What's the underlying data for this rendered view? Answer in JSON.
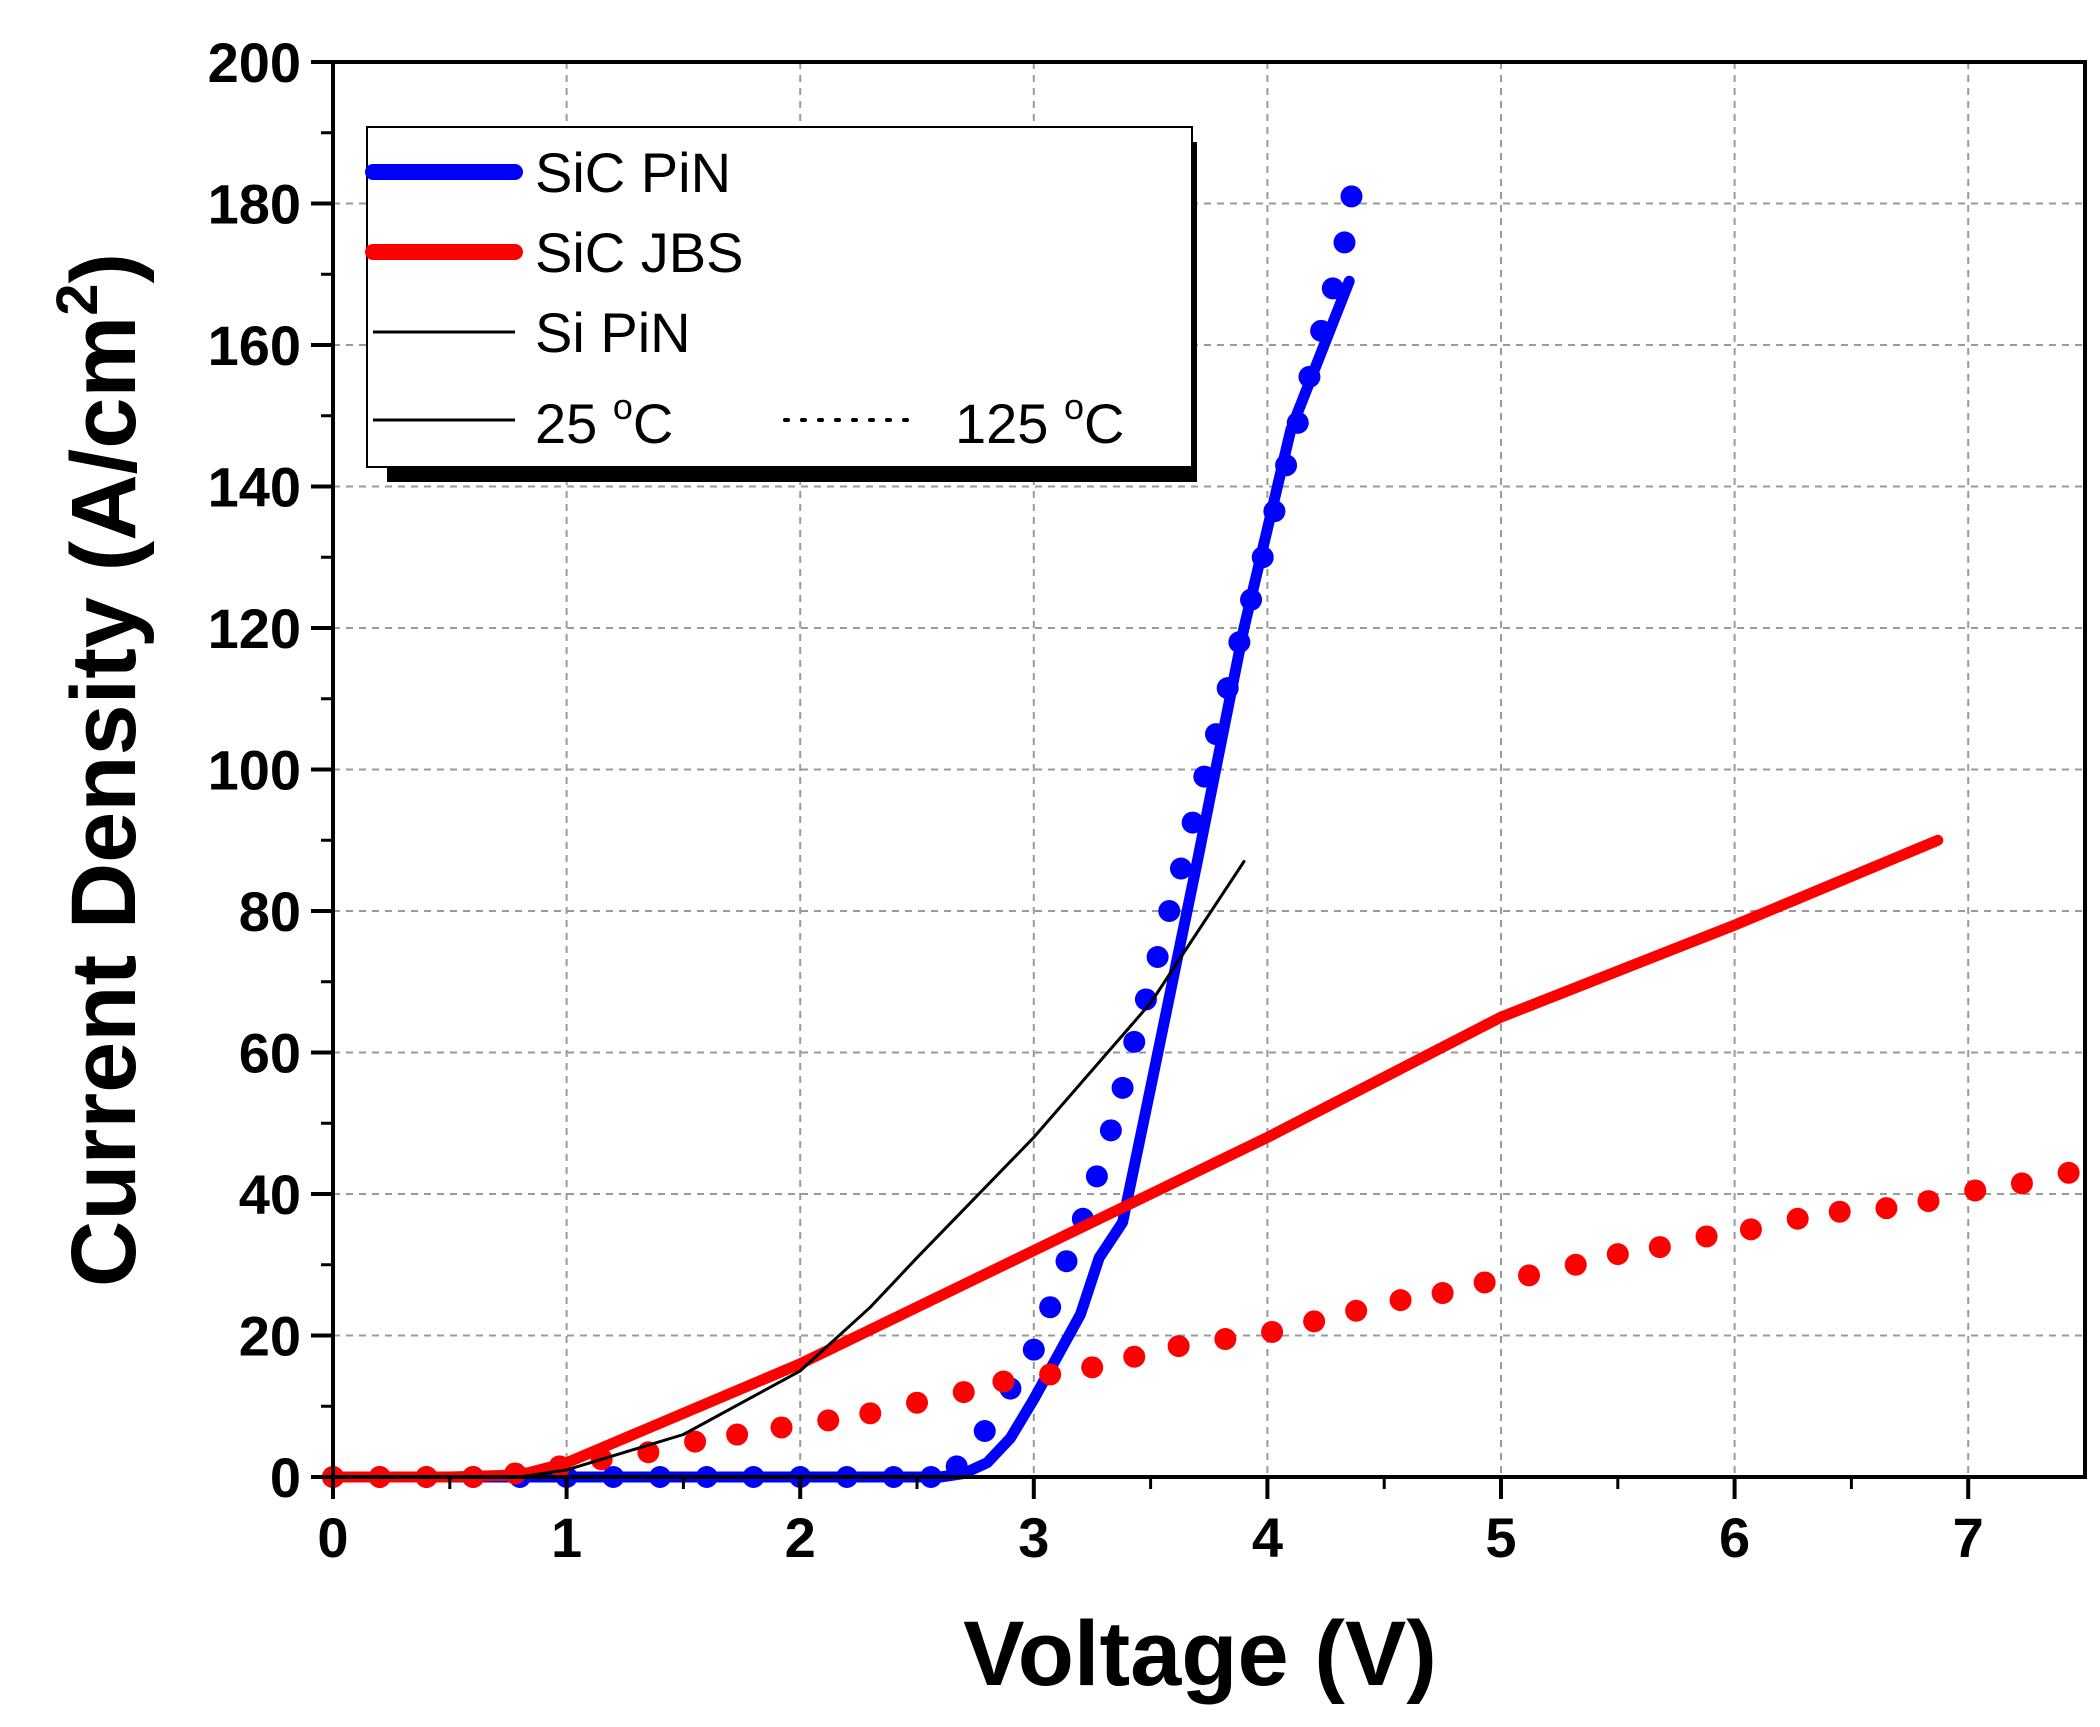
{
  "chart_data": {
    "type": "line",
    "title": "",
    "xlabel": "Voltage (V)",
    "ylabel": {
      "main": "Current Density (A/cm",
      "sup": "2",
      "end": ")"
    },
    "xlim": [
      0,
      7.5
    ],
    "ylim": [
      0,
      200
    ],
    "x_ticks": [
      "0",
      "1",
      "2",
      "3",
      "4",
      "5",
      "6",
      "7"
    ],
    "y_ticks": [
      "0",
      "20",
      "40",
      "60",
      "80",
      "100",
      "120",
      "140",
      "160",
      "180",
      "200"
    ],
    "grid": true,
    "legend": {
      "position": "top-left",
      "entries": [
        {
          "label": "SiC PiN",
          "color": "#0000ff"
        },
        {
          "label": "SiC JBS",
          "color": "#ff0000"
        },
        {
          "label": "Si PiN",
          "color": "#000000"
        }
      ],
      "style_entries": [
        {
          "label": "25 ",
          "sup": "o",
          "unit": "C",
          "style": "solid"
        },
        {
          "label": "125 ",
          "sup": "o",
          "unit": "C",
          "style": "dotted"
        }
      ]
    },
    "series": [
      {
        "name": "SiC PiN 25 °C",
        "color": "#0000ff",
        "style": "solid",
        "width": "thick",
        "x": [
          0,
          1,
          2,
          2.6,
          2.7,
          2.8,
          2.9,
          3.0,
          3.1,
          3.2,
          3.25,
          3.28,
          3.3,
          3.38,
          3.5,
          3.7,
          3.9,
          4.1,
          4.35
        ],
        "y": [
          0,
          0,
          0,
          0,
          0.5,
          2,
          5.5,
          11,
          17,
          23,
          28,
          31,
          32,
          36,
          55,
          87,
          120,
          148,
          169
        ]
      },
      {
        "name": "SiC PiN 125 °C",
        "color": "#0000ff",
        "style": "dotted",
        "x": [
          0,
          0.2,
          0.4,
          0.6,
          0.8,
          1.0,
          1.2,
          1.4,
          1.6,
          1.8,
          2.0,
          2.2,
          2.4,
          2.56,
          2.67,
          2.79,
          2.9,
          3.0,
          3.07,
          3.14,
          3.21,
          3.27,
          3.33,
          3.38,
          3.43,
          3.48,
          3.53,
          3.58,
          3.63,
          3.68,
          3.73,
          3.78,
          3.83,
          3.88,
          3.93,
          3.98,
          4.03,
          4.08,
          4.13,
          4.18,
          4.23,
          4.28,
          4.33,
          4.36
        ],
        "y": [
          0,
          0,
          0,
          0,
          0,
          0,
          0,
          0,
          0,
          0,
          0,
          0,
          0,
          0,
          1.5,
          6.5,
          12.5,
          18,
          24,
          30.5,
          36.5,
          42.5,
          49,
          55,
          61.5,
          67.5,
          73.5,
          80,
          86,
          92.5,
          99,
          105,
          111.5,
          118,
          124,
          130,
          136.5,
          143,
          149,
          155.5,
          162,
          168,
          174.5,
          181
        ]
      },
      {
        "name": "SiC JBS 25 °C",
        "color": "#ff0000",
        "style": "solid",
        "width": "thick",
        "x": [
          0,
          0.5,
          0.8,
          1.0,
          1.5,
          2.0,
          3.0,
          4.0,
          5.0,
          6.0,
          6.87
        ],
        "y": [
          0,
          0,
          0.3,
          2,
          9,
          16,
          32,
          48,
          65,
          78,
          90
        ]
      },
      {
        "name": "SiC JBS 125 °C",
        "color": "#ff0000",
        "style": "dotted",
        "x": [
          0,
          0.2,
          0.4,
          0.6,
          0.78,
          0.97,
          1.15,
          1.35,
          1.55,
          1.73,
          1.92,
          2.12,
          2.3,
          2.5,
          2.7,
          2.87,
          3.07,
          3.25,
          3.43,
          3.62,
          3.82,
          4.02,
          4.2,
          4.38,
          4.57,
          4.75,
          4.93,
          5.12,
          5.32,
          5.5,
          5.68,
          5.88,
          6.07,
          6.27,
          6.45,
          6.65,
          6.83,
          7.03,
          7.23,
          7.43
        ],
        "y": [
          0,
          0,
          0,
          0,
          0.5,
          1.5,
          2.5,
          3.5,
          5,
          6,
          7,
          8,
          9,
          10.5,
          12,
          13.5,
          14.5,
          15.5,
          17,
          18.5,
          19.5,
          20.5,
          22,
          23.5,
          25,
          26,
          27.5,
          28.5,
          30,
          31.5,
          32.5,
          34,
          35,
          36.5,
          37.5,
          38,
          39,
          40.5,
          41.5,
          43
        ]
      },
      {
        "name": "Si PiN 25 °C",
        "color": "#000000",
        "style": "solid",
        "width": "thin",
        "x": [
          0,
          0.8,
          1.0,
          1.5,
          2.0,
          2.3,
          2.5,
          3.0,
          3.5,
          3.9
        ],
        "y": [
          0,
          0,
          1,
          6,
          15,
          24,
          31,
          48,
          67,
          87
        ]
      }
    ]
  }
}
